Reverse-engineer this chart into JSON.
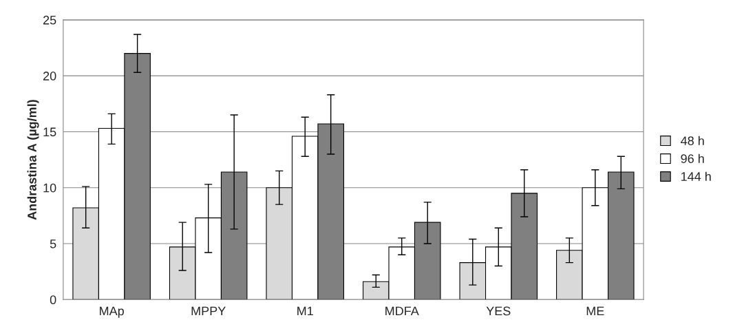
{
  "chart_data": {
    "type": "bar",
    "ylabel": "Andrastina A (µg/ml)",
    "categories": [
      "MAp",
      "MPPY",
      "M1",
      "MDFA",
      "YES",
      "ME"
    ],
    "series": [
      {
        "name": "48 h",
        "color": "#d9d9d9",
        "values": [
          8.2,
          4.7,
          10.0,
          1.6,
          3.3,
          4.4
        ],
        "errors": [
          [
            6.4,
            10.1
          ],
          [
            2.6,
            6.9
          ],
          [
            8.5,
            11.5
          ],
          [
            1.1,
            2.2
          ],
          [
            1.3,
            5.4
          ],
          [
            3.3,
            5.5
          ]
        ]
      },
      {
        "name": "96 h",
        "color": "#ffffff",
        "values": [
          15.3,
          7.3,
          14.6,
          4.7,
          4.7,
          10.0
        ],
        "errors": [
          [
            13.9,
            16.6
          ],
          [
            4.2,
            10.3
          ],
          [
            12.8,
            16.3
          ],
          [
            4.0,
            5.5
          ],
          [
            3.0,
            6.4
          ],
          [
            8.4,
            11.6
          ]
        ]
      },
      {
        "name": "144 h",
        "color": "#808080",
        "values": [
          22.0,
          11.4,
          15.7,
          6.9,
          9.5,
          11.4
        ],
        "errors": [
          [
            20.3,
            23.7
          ],
          [
            6.3,
            16.5
          ],
          [
            13.0,
            18.3
          ],
          [
            5.0,
            8.7
          ],
          [
            7.4,
            11.6
          ],
          [
            9.9,
            12.8
          ]
        ]
      }
    ],
    "ylim": [
      0,
      25
    ],
    "yticks": [
      0,
      5,
      10,
      15,
      20,
      25
    ],
    "grid": "y",
    "legend": "right"
  }
}
